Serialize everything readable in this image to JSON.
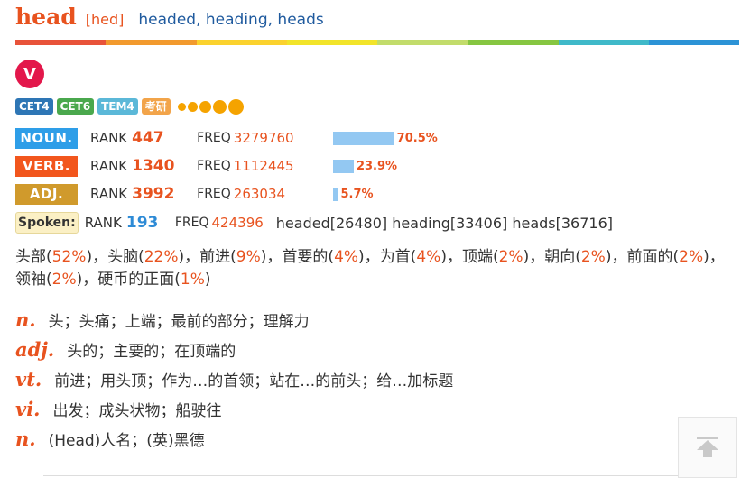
{
  "entry": {
    "headword": "head",
    "phonetic": "[hed]",
    "forms": "headed, heading, heads"
  },
  "rainbow_colors": [
    "#e8533a",
    "#f29a2e",
    "#fbd22e",
    "#f2e42a",
    "#c2dc6b",
    "#86c641",
    "#3fb9c9",
    "#2c93d6"
  ],
  "badge": {
    "letter": "V",
    "color": "#e3174b"
  },
  "tags": [
    {
      "label": "CET4",
      "color": "#2e76b5"
    },
    {
      "label": "CET6",
      "color": "#4aa84d"
    },
    {
      "label": "TEM4",
      "color": "#5bb8d8"
    },
    {
      "label": "考研",
      "color": "#f2a44a"
    }
  ],
  "stars": {
    "icon": "star-dot-icon",
    "sizes": [
      9,
      11,
      13,
      15,
      17
    ]
  },
  "pos_stats": [
    {
      "label": "NOUN.",
      "color": "#2e9ee8",
      "rank_label": "RANK",
      "rank": "447",
      "freq_label": "FREQ",
      "freq": "3279760",
      "percent": "70.5%",
      "share": 70.5
    },
    {
      "label": "VERB.",
      "color": "#f2561d",
      "rank_label": "RANK",
      "rank": "1340",
      "freq_label": "FREQ",
      "freq": "1112445",
      "percent": "23.9%",
      "share": 23.9
    },
    {
      "label": "ADJ.",
      "color": "#d09a2c",
      "rank_label": "RANK",
      "rank": "3992",
      "freq_label": "FREQ",
      "freq": "263034",
      "percent": "5.7%",
      "share": 5.7
    }
  ],
  "spoken": {
    "label": "Spoken:",
    "rank_label": "RANK",
    "rank": "193",
    "freq_label": "FREQ",
    "freq": "424396",
    "forms": "headed[26480] heading[33406] heads[36716]"
  },
  "senses": [
    {
      "text": "头部",
      "pct": "52%"
    },
    {
      "text": "头脑",
      "pct": "22%"
    },
    {
      "text": "前进",
      "pct": "9%"
    },
    {
      "text": "首要的",
      "pct": "4%"
    },
    {
      "text": "为首",
      "pct": "4%"
    },
    {
      "text": "顶端",
      "pct": "2%"
    },
    {
      "text": "朝向",
      "pct": "2%"
    },
    {
      "text": "前面的",
      "pct": "2%"
    },
    {
      "text": "领袖",
      "pct": "2%"
    },
    {
      "text": "硬币的正面",
      "pct": "1%"
    }
  ],
  "definitions": [
    {
      "pos": "n.",
      "gloss": "头；头痛；上端；最前的部分；理解力"
    },
    {
      "pos": "adj.",
      "gloss": "头的；主要的；在顶端的"
    },
    {
      "pos": "vt.",
      "gloss": "前进；用头顶；作为…的首领；站在…的前头；给…加标题"
    },
    {
      "pos": "vi.",
      "gloss": "出发；成头状物；船驶往"
    },
    {
      "pos": "n.",
      "gloss": "(Head)人名；(英)黑德"
    }
  ],
  "back_to_top": {
    "icon": "arrow-up-to-top-icon"
  }
}
